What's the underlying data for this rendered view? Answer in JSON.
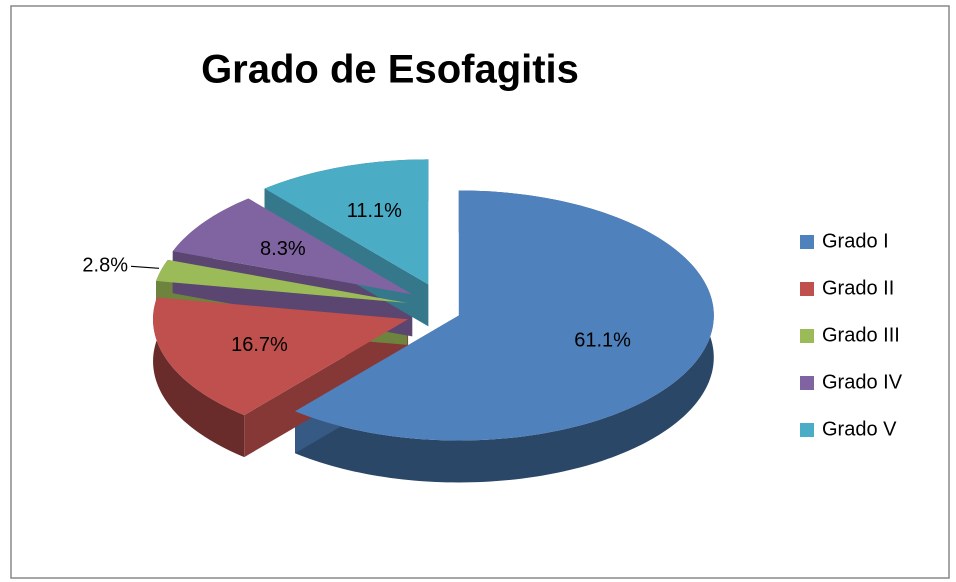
{
  "chart_data": {
    "type": "pie3d",
    "title": "Grado de Esofagitis",
    "categories": [
      "Grado I",
      "Grado II",
      "Grado III",
      "Grado IV",
      "Grado V"
    ],
    "values": [
      61.1,
      16.7,
      2.8,
      8.3,
      11.1
    ],
    "value_labels": [
      "61.1%",
      "16.7%",
      "2.8%",
      "8.3%",
      "11.1%"
    ],
    "colors": [
      "#4f81bd",
      "#c0504d",
      "#9bbb59",
      "#8064a2",
      "#4bacc6"
    ],
    "legend": "right"
  }
}
